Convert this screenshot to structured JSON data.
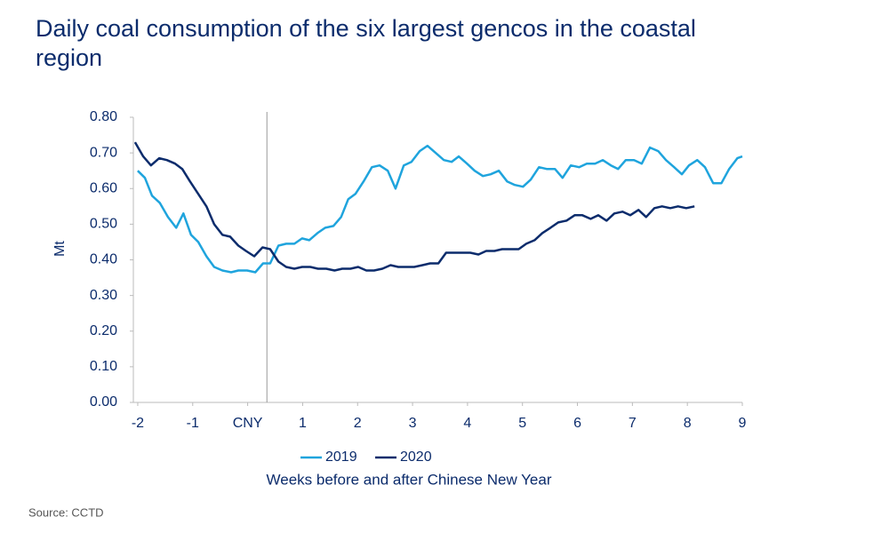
{
  "chart_data": {
    "type": "line",
    "title": "Daily coal consumption of the six largest gencos in the coastal region",
    "ylabel": "Mt",
    "xlabel": "Weeks before and after Chinese New Year",
    "source": "Source: CCTD",
    "xlim": [
      -2.08,
      9
    ],
    "xticks": [
      -2,
      -1,
      {
        "value": 0,
        "label": "CNY"
      },
      1,
      2,
      3,
      4,
      5,
      6,
      7,
      8,
      9
    ],
    "ylim": [
      0,
      0.8
    ],
    "yticks": [
      {
        "value": 0,
        "label": "0.00"
      },
      {
        "value": 0.1,
        "label": "0.10"
      },
      {
        "value": 0.2,
        "label": "0.20"
      },
      {
        "value": 0.3,
        "label": "0.30"
      },
      {
        "value": 0.4,
        "label": "0.40"
      },
      {
        "value": 0.5,
        "label": "0.50"
      },
      {
        "value": 0.6,
        "label": "0.60"
      },
      {
        "value": 0.7,
        "label": "0.70"
      },
      {
        "value": 0.8,
        "label": "0.80"
      }
    ],
    "vline_x": 0.35,
    "legend": "bottom",
    "series": [
      {
        "name": "2019",
        "color": "#1fa4dd",
        "x": [
          -2.0,
          -1.87,
          -1.74,
          -1.6,
          -1.45,
          -1.3,
          -1.17,
          -1.03,
          -0.9,
          -0.75,
          -0.61,
          -0.46,
          -0.3,
          -0.17,
          -0.01,
          0.14,
          0.28,
          0.41,
          0.56,
          0.7,
          0.85,
          0.99,
          1.12,
          1.27,
          1.41,
          1.56,
          1.7,
          1.83,
          1.96,
          2.11,
          2.26,
          2.4,
          2.55,
          2.69,
          2.84,
          2.98,
          3.13,
          3.27,
          3.42,
          3.57,
          3.71,
          3.84,
          3.99,
          4.13,
          4.28,
          4.42,
          4.57,
          4.72,
          4.86,
          5.01,
          5.15,
          5.3,
          5.44,
          5.59,
          5.73,
          5.88,
          6.03,
          6.17,
          6.32,
          6.46,
          6.61,
          6.74,
          6.88,
          7.03,
          7.17,
          7.32,
          7.47,
          7.61,
          7.76,
          7.9,
          8.03,
          8.18,
          8.32,
          8.47,
          8.62,
          8.76,
          8.91,
          9.0
        ],
        "values": [
          0.65,
          0.63,
          0.58,
          0.56,
          0.52,
          0.49,
          0.53,
          0.47,
          0.45,
          0.41,
          0.38,
          0.37,
          0.365,
          0.37,
          0.37,
          0.365,
          0.39,
          0.39,
          0.44,
          0.445,
          0.445,
          0.46,
          0.455,
          0.475,
          0.49,
          0.495,
          0.52,
          0.57,
          0.585,
          0.62,
          0.66,
          0.665,
          0.65,
          0.6,
          0.665,
          0.675,
          0.705,
          0.72,
          0.7,
          0.68,
          0.675,
          0.69,
          0.67,
          0.65,
          0.635,
          0.64,
          0.65,
          0.62,
          0.61,
          0.605,
          0.625,
          0.66,
          0.655,
          0.655,
          0.63,
          0.665,
          0.66,
          0.67,
          0.67,
          0.68,
          0.665,
          0.655,
          0.68,
          0.68,
          0.67,
          0.715,
          0.705,
          0.68,
          0.66,
          0.64,
          0.665,
          0.68,
          0.66,
          0.615,
          0.615,
          0.655,
          0.685,
          0.69
        ]
      },
      {
        "name": "2020",
        "color": "#0c2c6c",
        "x": [
          -2.05,
          -1.9,
          -1.76,
          -1.61,
          -1.47,
          -1.32,
          -1.19,
          -1.05,
          -0.9,
          -0.75,
          -0.61,
          -0.46,
          -0.32,
          -0.17,
          -0.03,
          0.12,
          0.27,
          0.41,
          0.56,
          0.7,
          0.85,
          0.99,
          1.14,
          1.28,
          1.43,
          1.58,
          1.72,
          1.87,
          2.01,
          2.16,
          2.3,
          2.45,
          2.6,
          2.74,
          2.89,
          3.03,
          3.18,
          3.32,
          3.47,
          3.61,
          3.76,
          3.91,
          4.05,
          4.2,
          4.34,
          4.49,
          4.63,
          4.78,
          4.93,
          5.07,
          5.22,
          5.36,
          5.51,
          5.65,
          5.8,
          5.95,
          6.09,
          6.24,
          6.38,
          6.53,
          6.67,
          6.82,
          6.96,
          7.11,
          7.25,
          7.4,
          7.54,
          7.69,
          7.83,
          7.98,
          8.13
        ],
        "values": [
          0.73,
          0.69,
          0.665,
          0.685,
          0.68,
          0.67,
          0.655,
          0.62,
          0.585,
          0.55,
          0.5,
          0.47,
          0.465,
          0.44,
          0.425,
          0.41,
          0.435,
          0.43,
          0.395,
          0.38,
          0.375,
          0.38,
          0.38,
          0.375,
          0.375,
          0.37,
          0.375,
          0.375,
          0.38,
          0.37,
          0.37,
          0.375,
          0.385,
          0.38,
          0.38,
          0.38,
          0.385,
          0.39,
          0.39,
          0.42,
          0.42,
          0.42,
          0.42,
          0.415,
          0.425,
          0.425,
          0.43,
          0.43,
          0.43,
          0.445,
          0.455,
          0.475,
          0.49,
          0.505,
          0.51,
          0.525,
          0.525,
          0.515,
          0.525,
          0.51,
          0.53,
          0.535,
          0.525,
          0.54,
          0.52,
          0.545,
          0.55,
          0.545,
          0.55,
          0.545,
          0.55
        ]
      }
    ]
  }
}
